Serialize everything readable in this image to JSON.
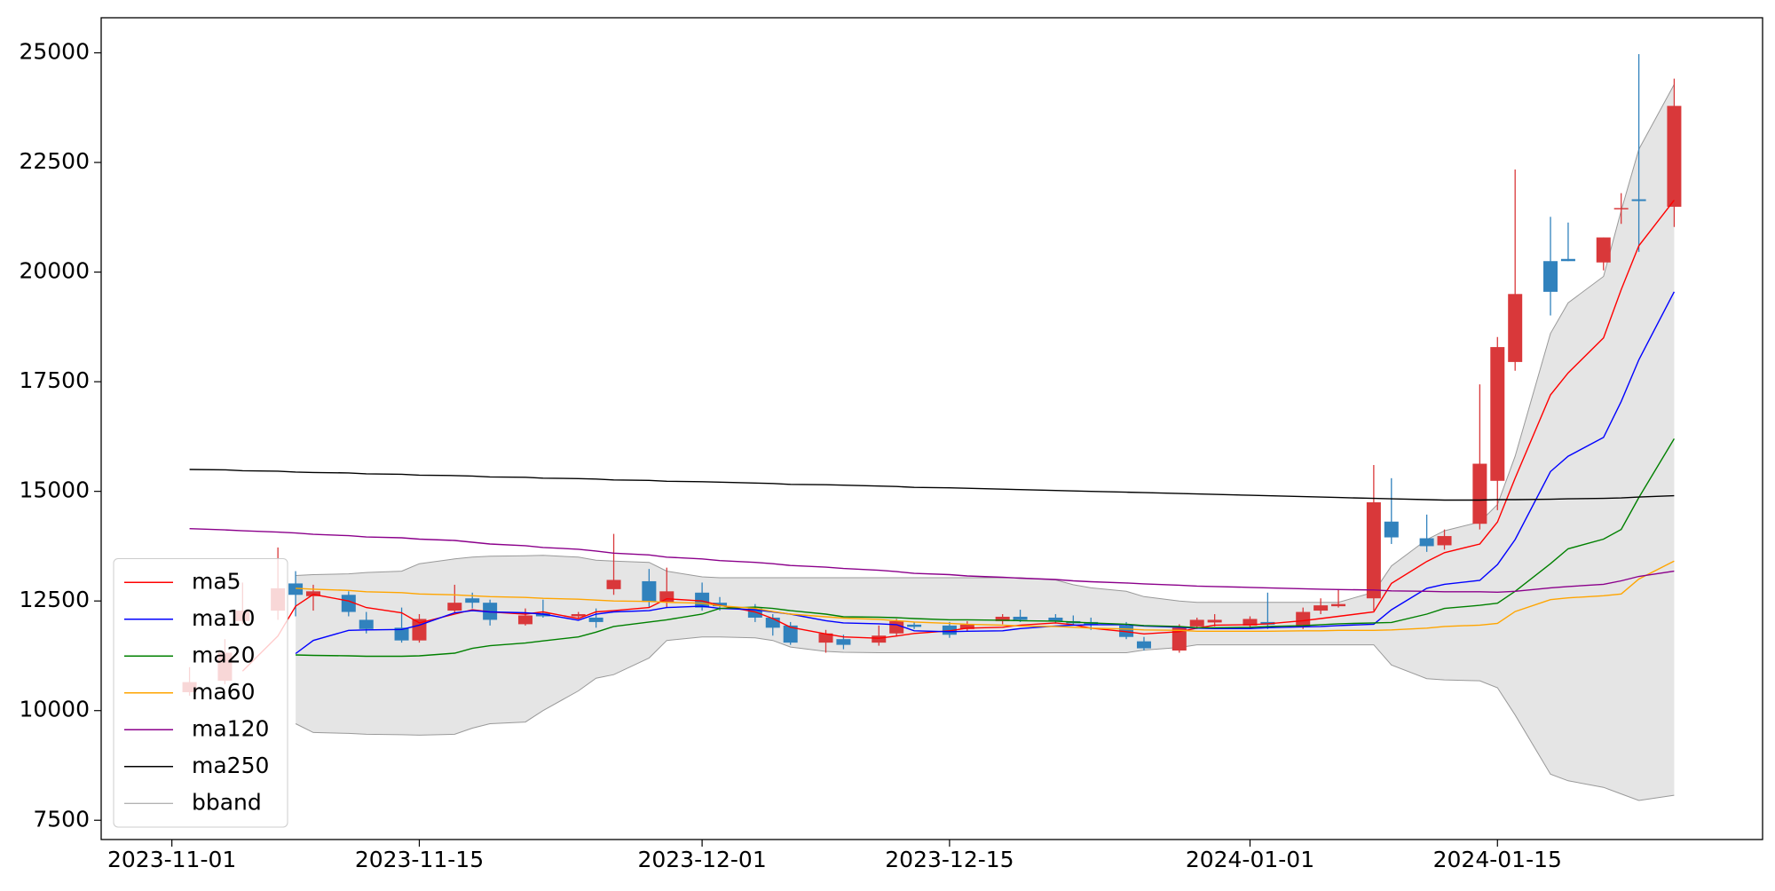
{
  "chart_data": {
    "type": "candlestick",
    "x": [
      "2023-11-02",
      "2023-11-04",
      "2023-11-05",
      "2023-11-07",
      "2023-11-08",
      "2023-11-09",
      "2023-11-11",
      "2023-11-12",
      "2023-11-14",
      "2023-11-15",
      "2023-11-17",
      "2023-11-18",
      "2023-11-19",
      "2023-11-21",
      "2023-11-22",
      "2023-11-24",
      "2023-11-25",
      "2023-11-26",
      "2023-11-28",
      "2023-11-29",
      "2023-12-01",
      "2023-12-02",
      "2023-12-04",
      "2023-12-05",
      "2023-12-06",
      "2023-12-08",
      "2023-12-09",
      "2023-12-11",
      "2023-12-12",
      "2023-12-13",
      "2023-12-15",
      "2023-12-16",
      "2023-12-18",
      "2023-12-19",
      "2023-12-21",
      "2023-12-22",
      "2023-12-23",
      "2023-12-25",
      "2023-12-26",
      "2023-12-28",
      "2023-12-29",
      "2023-12-30",
      "2024-01-01",
      "2024-01-02",
      "2024-01-04",
      "2024-01-05",
      "2024-01-06",
      "2024-01-08",
      "2024-01-09",
      "2024-01-11",
      "2024-01-12",
      "2024-01-14",
      "2024-01-15",
      "2024-01-16",
      "2024-01-18",
      "2024-01-19",
      "2024-01-21",
      "2024-01-22",
      "2024-01-23",
      "2024-01-25"
    ],
    "candles": {
      "up_color": "#d9383a",
      "down_color": "#3182bd",
      "open": [
        10420,
        10680,
        12040,
        12280,
        12900,
        12610,
        12640,
        12070,
        11890,
        11600,
        12280,
        12560,
        12460,
        11970,
        12220,
        12150,
        12120,
        12770,
        12950,
        12480,
        12690,
        12460,
        12330,
        12120,
        11940,
        11550,
        11630,
        11550,
        11760,
        11960,
        11940,
        11860,
        12040,
        12140,
        12120,
        12040,
        12020,
        11940,
        11580,
        11370,
        11920,
        12010,
        11940,
        12020,
        11920,
        12280,
        12380,
        12560,
        14310,
        13930,
        13770,
        14260,
        15240,
        17950,
        20250,
        20300,
        20220,
        21430,
        21660,
        21490
      ],
      "high": [
        10990,
        11630,
        12920,
        13720,
        13180,
        12870,
        12720,
        12250,
        12350,
        12200,
        12870,
        12690,
        12530,
        12330,
        12530,
        12250,
        12330,
        14030,
        13230,
        13260,
        12920,
        12590,
        12430,
        12200,
        12020,
        11840,
        11730,
        11940,
        12090,
        12020,
        12020,
        12040,
        12200,
        12300,
        12200,
        12170,
        12120,
        12020,
        11680,
        11970,
        12120,
        12200,
        12150,
        12690,
        12350,
        12560,
        12770,
        15600,
        15300,
        14470,
        14130,
        17440,
        18520,
        22340,
        21260,
        21130,
        20790,
        21800,
        24970,
        24410
      ],
      "low": [
        10340,
        10600,
        11970,
        12070,
        12150,
        12280,
        12150,
        11760,
        11550,
        11550,
        12220,
        12330,
        11940,
        11940,
        12120,
        12100,
        11890,
        12640,
        12350,
        12350,
        12280,
        12280,
        12020,
        11710,
        11500,
        11320,
        11400,
        11480,
        11710,
        11860,
        11660,
        11810,
        11970,
        12020,
        11990,
        11940,
        11840,
        11630,
        11370,
        11320,
        11860,
        11920,
        11860,
        11860,
        11860,
        12200,
        12350,
        12280,
        13800,
        13620,
        13670,
        14130,
        14570,
        17750,
        19010,
        20250,
        20040,
        21100,
        20460,
        21030
      ],
      "close": [
        10650,
        11320,
        12280,
        12790,
        12640,
        12720,
        12250,
        11860,
        11600,
        12090,
        12460,
        12460,
        12070,
        12170,
        12150,
        12200,
        12020,
        12980,
        12480,
        12720,
        12350,
        12380,
        12120,
        11890,
        11550,
        11760,
        11500,
        11710,
        12040,
        11910,
        11730,
        11960,
        12140,
        12070,
        12040,
        11990,
        11960,
        11680,
        11420,
        11890,
        12070,
        12070,
        12090,
        11960,
        12250,
        12400,
        12430,
        14750,
        13950,
        13750,
        13980,
        15630,
        18290,
        19500,
        19550,
        20250,
        20790,
        21460,
        21620,
        23790
      ]
    },
    "series": [
      {
        "name": "ma5",
        "color": "#ff0000",
        "values": [
          null,
          null,
          10900,
          11700,
          12380,
          12650,
          12500,
          12350,
          12230,
          12000,
          12200,
          12300,
          12250,
          12200,
          12250,
          12100,
          12250,
          12280,
          12350,
          12550,
          12500,
          12400,
          12250,
          12100,
          11900,
          11750,
          11680,
          11650,
          11700,
          11760,
          11820,
          11880,
          11900,
          11950,
          12000,
          11960,
          11880,
          11800,
          11750,
          11800,
          11880,
          11950,
          11960,
          11980,
          12050,
          12100,
          12150,
          12250,
          12900,
          13400,
          13600,
          13800,
          14300,
          15300,
          17200,
          17700,
          18500,
          19600,
          20600,
          21640
        ]
      },
      {
        "name": "ma10",
        "color": "#0000ff",
        "values": [
          null,
          null,
          null,
          null,
          11300,
          11600,
          11830,
          11840,
          11850,
          11950,
          12230,
          12280,
          12250,
          12230,
          12200,
          12060,
          12200,
          12250,
          12280,
          12350,
          12380,
          12330,
          12300,
          12250,
          12200,
          12050,
          12000,
          11980,
          11960,
          11820,
          11800,
          11810,
          11820,
          11870,
          11930,
          11950,
          11960,
          11960,
          11930,
          11900,
          11880,
          11870,
          11870,
          11890,
          11910,
          11920,
          11940,
          11970,
          12300,
          12790,
          12880,
          12970,
          13330,
          13900,
          15450,
          15800,
          16230,
          17050,
          18000,
          19550
        ]
      },
      {
        "name": "ma20",
        "color": "#008000",
        "values": [
          null,
          null,
          null,
          null,
          11270,
          11260,
          11250,
          11240,
          11240,
          11250,
          11310,
          11420,
          11480,
          11540,
          11590,
          11680,
          11790,
          11920,
          12020,
          12070,
          12200,
          12330,
          12360,
          12330,
          12280,
          12200,
          12140,
          12130,
          12120,
          12100,
          12070,
          12070,
          12060,
          12050,
          12040,
          12020,
          12000,
          11970,
          11940,
          11920,
          11890,
          11890,
          11900,
          11920,
          11940,
          11960,
          11980,
          12000,
          12010,
          12200,
          12330,
          12400,
          12450,
          12720,
          13350,
          13690,
          13910,
          14130,
          14860,
          16200
        ]
      },
      {
        "name": "ma60",
        "color": "#ffa500",
        "values": [
          null,
          null,
          null,
          null,
          12790,
          12770,
          12740,
          12710,
          12690,
          12660,
          12640,
          12620,
          12600,
          12580,
          12560,
          12540,
          12520,
          12500,
          12490,
          12470,
          12450,
          12390,
          12330,
          12260,
          12200,
          12140,
          12110,
          12080,
          12050,
          12020,
          11990,
          11970,
          11950,
          11930,
          11920,
          11900,
          11880,
          11860,
          11840,
          11830,
          11810,
          11810,
          11810,
          11810,
          11820,
          11820,
          11830,
          11830,
          11840,
          11880,
          11920,
          11950,
          11990,
          12260,
          12530,
          12570,
          12620,
          12660,
          13000,
          13410
        ]
      },
      {
        "name": "ma120",
        "color": "#8b008b",
        "values": [
          14150,
          14120,
          14100,
          14070,
          14050,
          14020,
          13990,
          13960,
          13940,
          13910,
          13880,
          13840,
          13800,
          13760,
          13720,
          13680,
          13640,
          13590,
          13550,
          13500,
          13460,
          13420,
          13380,
          13350,
          13310,
          13270,
          13240,
          13200,
          13170,
          13130,
          13100,
          13070,
          13040,
          13020,
          12990,
          12960,
          12940,
          12910,
          12890,
          12860,
          12840,
          12830,
          12810,
          12800,
          12780,
          12770,
          12760,
          12750,
          12730,
          12720,
          12710,
          12710,
          12700,
          12720,
          12800,
          12830,
          12880,
          12960,
          13060,
          13180
        ]
      },
      {
        "name": "ma250",
        "color": "#000000",
        "values": [
          15500,
          15490,
          15470,
          15460,
          15440,
          15430,
          15420,
          15400,
          15390,
          15370,
          15360,
          15350,
          15330,
          15320,
          15300,
          15290,
          15280,
          15260,
          15250,
          15230,
          15220,
          15210,
          15190,
          15180,
          15160,
          15150,
          15140,
          15120,
          15110,
          15090,
          15080,
          15070,
          15050,
          15040,
          15020,
          15010,
          15000,
          14980,
          14970,
          14950,
          14940,
          14930,
          14910,
          14900,
          14880,
          14870,
          14860,
          14840,
          14830,
          14810,
          14800,
          14800,
          14810,
          14810,
          14820,
          14830,
          14840,
          14850,
          14870,
          14900
        ]
      }
    ],
    "bband": {
      "name": "bband",
      "color": "#999999",
      "fill": "#e5e5e5",
      "upper": [
        null,
        null,
        null,
        null,
        13080,
        13100,
        13120,
        13150,
        13180,
        13350,
        13460,
        13500,
        13520,
        13530,
        13540,
        13500,
        13430,
        13410,
        13380,
        13180,
        13050,
        13030,
        13030,
        13030,
        13030,
        13030,
        13030,
        13030,
        13030,
        13030,
        13030,
        13030,
        13030,
        13030,
        12980,
        12870,
        12800,
        12720,
        12600,
        12500,
        12470,
        12470,
        12470,
        12470,
        12470,
        12470,
        12470,
        12700,
        13300,
        13900,
        14100,
        14300,
        14700,
        15800,
        18600,
        19300,
        19900,
        21400,
        22800,
        24280
      ],
      "lower": [
        null,
        null,
        null,
        null,
        9700,
        9500,
        9480,
        9460,
        9450,
        9440,
        9460,
        9600,
        9700,
        9740,
        10000,
        10450,
        10740,
        10820,
        11200,
        11600,
        11680,
        11680,
        11660,
        11600,
        11450,
        11350,
        11330,
        11320,
        11320,
        11320,
        11320,
        11320,
        11320,
        11320,
        11320,
        11320,
        11320,
        11320,
        11380,
        11440,
        11500,
        11500,
        11500,
        11500,
        11500,
        11500,
        11500,
        11500,
        11040,
        10730,
        10700,
        10680,
        10520,
        9900,
        8550,
        8400,
        8250,
        8100,
        7950,
        8070
      ]
    },
    "xlim": [
      "2023-10-28",
      "2024-01-30"
    ],
    "xticks": [
      "2023-11-01",
      "2023-11-15",
      "2023-12-01",
      "2023-12-15",
      "2024-01-01",
      "2024-01-15"
    ],
    "ylim": [
      7060,
      25800
    ],
    "yticks": [
      7500,
      10000,
      12500,
      15000,
      17500,
      20000,
      22500,
      25000
    ],
    "legend": "lower left"
  }
}
